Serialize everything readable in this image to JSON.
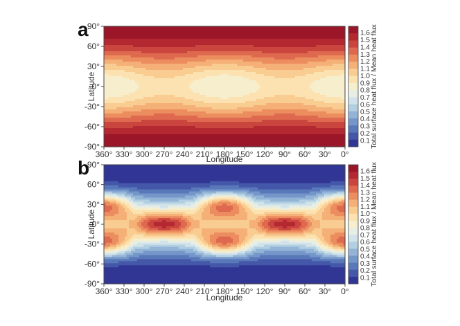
{
  "chart_data": [
    {
      "type": "heatmap",
      "panel": "a",
      "title": "",
      "xlabel": "Longitude",
      "ylabel": "Latitude",
      "xticks": [
        "360°",
        "330°",
        "300°",
        "270°",
        "240°",
        "210°",
        "180°",
        "150°",
        "120°",
        "90°",
        "60°",
        "30°",
        "0°"
      ],
      "yticks": [
        "90°",
        "60°",
        "30°",
        "0°",
        "-30°",
        "-60°",
        "-90°"
      ],
      "xlim": [
        360,
        0
      ],
      "ylim": [
        -90,
        90
      ],
      "colorbar_label": "Total surface heat flux / Mean heat flux",
      "colorbar_ticks": [
        "1.6",
        "1.5",
        "1.4",
        "1.3",
        "1.2",
        "1.1",
        "1.0",
        "0.9",
        "0.8",
        "0.7",
        "0.6",
        "0.5",
        "0.4",
        "0.3",
        "0.2",
        "0.1"
      ],
      "value_range": [
        0.1,
        1.65
      ],
      "pattern": "flux high at both poles (~1.65), minima (~0.8) centered on the equator at 0°, 180° and 360° longitude",
      "features": [
        {
          "kind": "min",
          "lon": 180,
          "lat": 0,
          "value": 0.8
        },
        {
          "kind": "min",
          "lon": 0,
          "lat": 0,
          "value": 0.8
        },
        {
          "kind": "min",
          "lon": 360,
          "lat": 0,
          "value": 0.8
        },
        {
          "kind": "max",
          "lon": 180,
          "lat": 90,
          "value": 1.65
        },
        {
          "kind": "max",
          "lon": 180,
          "lat": -90,
          "value": 1.65
        }
      ]
    },
    {
      "type": "heatmap",
      "panel": "b",
      "title": "",
      "xlabel": "Longitude",
      "ylabel": "Latitude",
      "xticks": [
        "360°",
        "330°",
        "300°",
        "270°",
        "240°",
        "210°",
        "180°",
        "150°",
        "120°",
        "90°",
        "60°",
        "30°",
        "0°"
      ],
      "yticks": [
        "90°",
        "60°",
        "30°",
        "0°",
        "-30°",
        "-60°",
        "-90°"
      ],
      "xlim": [
        360,
        0
      ],
      "ylim": [
        -90,
        90
      ],
      "colorbar_label": "Total surface heat flux / Mean heat flux",
      "colorbar_ticks": [
        "1.6",
        "1.5",
        "1.4",
        "1.3",
        "1.2",
        "1.1",
        "1.0",
        "0.9",
        "0.8",
        "0.7",
        "0.6",
        "0.5",
        "0.4",
        "0.3",
        "0.2",
        "0.1"
      ],
      "value_range": [
        0.1,
        1.65
      ],
      "pattern": "flux low at both poles (~0.1); maxima near ±30° latitude at 0°, 180° and 360° longitude; secondary maxima at the equator at 90° and 270°",
      "features": [
        {
          "kind": "max",
          "lon": 180,
          "lat": 30,
          "value": 1.65
        },
        {
          "kind": "max",
          "lon": 180,
          "lat": -30,
          "value": 1.65
        },
        {
          "kind": "max",
          "lon": 0,
          "lat": 30,
          "value": 1.6
        },
        {
          "kind": "max",
          "lon": 0,
          "lat": -30,
          "value": 1.6
        },
        {
          "kind": "max",
          "lon": 360,
          "lat": 30,
          "value": 1.6
        },
        {
          "kind": "max",
          "lon": 360,
          "lat": -30,
          "value": 1.6
        },
        {
          "kind": "max",
          "lon": 270,
          "lat": 0,
          "value": 1.5
        },
        {
          "kind": "max",
          "lon": 90,
          "lat": 0,
          "value": 1.5
        },
        {
          "kind": "min",
          "lon": 0,
          "lat": 90,
          "value": 0.1
        },
        {
          "kind": "min",
          "lon": 0,
          "lat": -90,
          "value": 0.1
        }
      ]
    }
  ]
}
